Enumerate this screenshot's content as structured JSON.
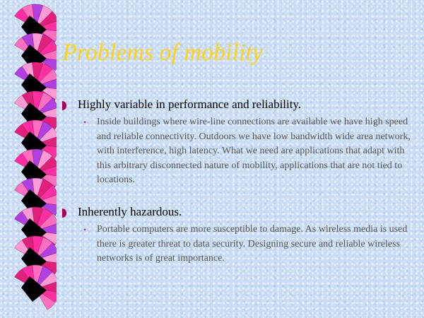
{
  "slide": {
    "title": "Problems of mobility",
    "bullets": [
      {
        "text": "Highly variable in performance and reliability.",
        "sub": "Inside buildings where wire-line connections are available we have high speed and reliable connectivity. Outdoors we have low bandwidth  wide area network, with interference, high latency. What we need are applications that adapt with this arbitrary disconnected nature of mobility, applications that are not tied to locations."
      },
      {
        "text": "Inherently hazardous.",
        "sub": "Portable computers are more susceptible to damage. As wireless media is used there is greater threat to data security. Designing secure and reliable wireless networks is of great importance."
      }
    ]
  },
  "colors": {
    "title": "#ffd21a",
    "bullet_marker": "#a8005a",
    "background": "#c9dcf3",
    "fan_colors": [
      "#ff2fa0",
      "#ff6fc0",
      "#b040e0",
      "#ff9ad5",
      "#e0207a"
    ]
  }
}
